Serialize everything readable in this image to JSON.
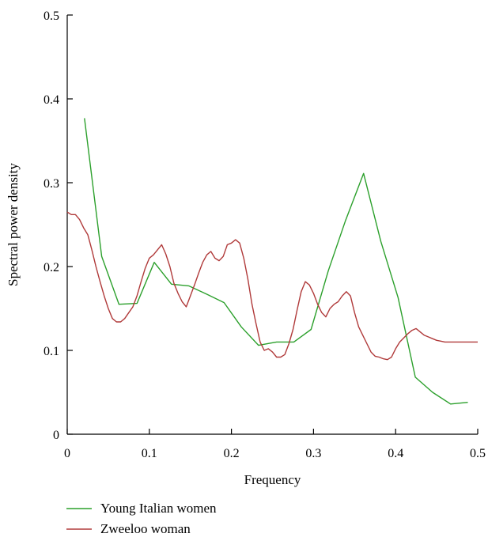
{
  "chart_data": {
    "type": "line",
    "title": "",
    "xlabel": "Frequency",
    "ylabel": "Spectral power density",
    "xlim": [
      0,
      0.5
    ],
    "ylim": [
      0,
      0.5
    ],
    "xticks": [
      0,
      0.1,
      0.2,
      0.3,
      0.4,
      0.5
    ],
    "xtick_labels": [
      "0",
      "0.1",
      "0.2",
      "0.3",
      "0.4",
      "0.5"
    ],
    "yticks": [
      0,
      0.1,
      0.2,
      0.3,
      0.4,
      0.5
    ],
    "ytick_labels": [
      "0",
      "0.1",
      "0.2",
      "0.3",
      "0.4",
      "0.5"
    ],
    "grid": false,
    "legend": "bottom-left, below plot",
    "series": [
      {
        "name": "Young Italian women",
        "color": "#2ca02c",
        "x": [
          0.021,
          0.042,
          0.063,
          0.085,
          0.106,
          0.127,
          0.148,
          0.17,
          0.191,
          0.212,
          0.233,
          0.255,
          0.276,
          0.297,
          0.318,
          0.339,
          0.361,
          0.382,
          0.403,
          0.424,
          0.445,
          0.467,
          0.488
        ],
        "y": [
          0.377,
          0.212,
          0.155,
          0.156,
          0.205,
          0.179,
          0.177,
          0.167,
          0.157,
          0.128,
          0.106,
          0.11,
          0.11,
          0.125,
          0.195,
          0.255,
          0.311,
          0.23,
          0.163,
          0.068,
          0.05,
          0.036,
          0.038
        ]
      },
      {
        "name": "Zweeloo woman",
        "color": "#b03a3a",
        "x": [
          0,
          0.005,
          0.01,
          0.015,
          0.02,
          0.025,
          0.03,
          0.035,
          0.04,
          0.045,
          0.05,
          0.055,
          0.06,
          0.065,
          0.07,
          0.075,
          0.08,
          0.085,
          0.09,
          0.095,
          0.1,
          0.105,
          0.11,
          0.115,
          0.12,
          0.125,
          0.13,
          0.135,
          0.14,
          0.145,
          0.15,
          0.155,
          0.16,
          0.165,
          0.17,
          0.175,
          0.18,
          0.185,
          0.19,
          0.195,
          0.2,
          0.205,
          0.21,
          0.215,
          0.22,
          0.225,
          0.23,
          0.235,
          0.24,
          0.245,
          0.25,
          0.255,
          0.26,
          0.265,
          0.27,
          0.275,
          0.28,
          0.285,
          0.29,
          0.295,
          0.3,
          0.305,
          0.31,
          0.315,
          0.32,
          0.325,
          0.33,
          0.335,
          0.34,
          0.345,
          0.35,
          0.355,
          0.36,
          0.365,
          0.37,
          0.375,
          0.38,
          0.385,
          0.39,
          0.395,
          0.4,
          0.405,
          0.41,
          0.415,
          0.42,
          0.425,
          0.43,
          0.435,
          0.44,
          0.445,
          0.45,
          0.455,
          0.46,
          0.465,
          0.47,
          0.475,
          0.48,
          0.485,
          0.49,
          0.495,
          0.5
        ],
        "y": [
          0.265,
          0.262,
          0.262,
          0.256,
          0.246,
          0.238,
          0.22,
          0.2,
          0.182,
          0.165,
          0.15,
          0.138,
          0.134,
          0.134,
          0.138,
          0.145,
          0.152,
          0.165,
          0.182,
          0.198,
          0.21,
          0.214,
          0.22,
          0.226,
          0.215,
          0.2,
          0.18,
          0.168,
          0.158,
          0.152,
          0.165,
          0.178,
          0.192,
          0.205,
          0.214,
          0.218,
          0.21,
          0.207,
          0.212,
          0.226,
          0.228,
          0.232,
          0.228,
          0.21,
          0.185,
          0.155,
          0.132,
          0.11,
          0.1,
          0.102,
          0.098,
          0.092,
          0.092,
          0.095,
          0.108,
          0.125,
          0.148,
          0.17,
          0.182,
          0.178,
          0.168,
          0.155,
          0.145,
          0.14,
          0.15,
          0.155,
          0.158,
          0.165,
          0.17,
          0.165,
          0.145,
          0.128,
          0.118,
          0.108,
          0.098,
          0.093,
          0.092,
          0.09,
          0.089,
          0.092,
          0.102,
          0.11,
          0.115,
          0.12,
          0.124,
          0.126,
          0.122,
          0.118,
          0.116,
          0.114,
          0.112,
          0.111,
          0.11,
          0.11,
          0.11,
          0.11,
          0.11,
          0.11,
          0.11,
          0.11,
          0.11
        ]
      }
    ]
  }
}
